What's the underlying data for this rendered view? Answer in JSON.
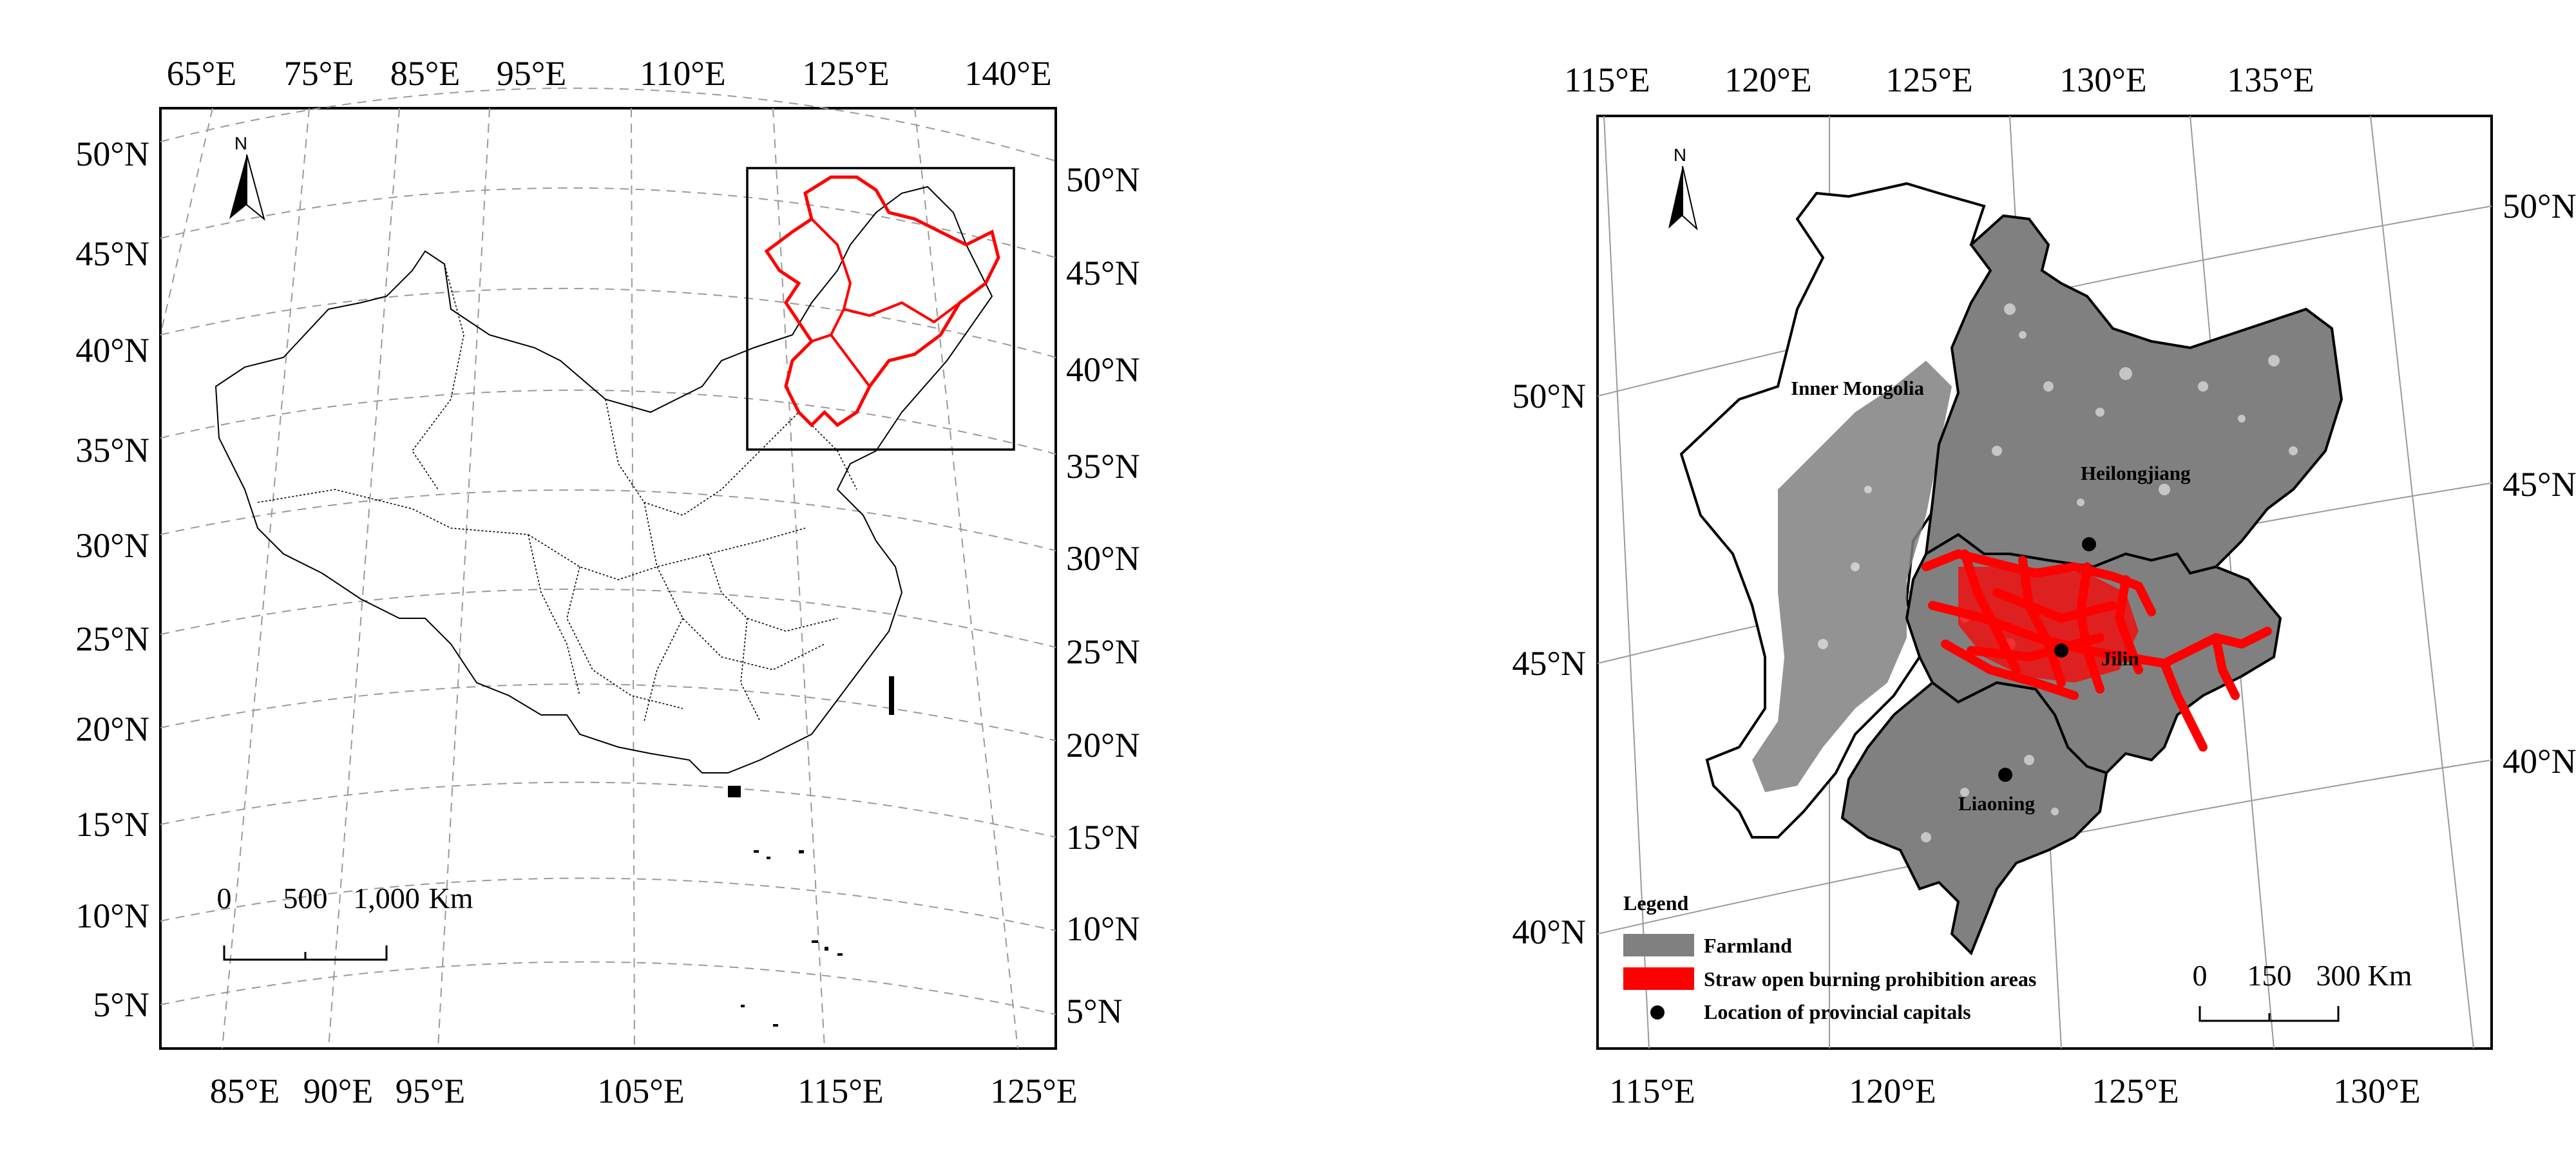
{
  "left_map": {
    "top_lon_labels": [
      "65°E",
      "75°E",
      "85°E",
      "95°E",
      "110°E",
      "125°E",
      "140°E"
    ],
    "bottom_lon_labels": [
      "85°E",
      "90°E",
      "95°E",
      "105°E",
      "115°E",
      "125°E"
    ],
    "left_lat_labels": [
      "50°N",
      "45°N",
      "40°N",
      "35°N",
      "30°N",
      "25°N",
      "20°N",
      "15°N",
      "10°N",
      "5°N"
    ],
    "right_lat_labels": [
      "50°N",
      "45°N",
      "40°N",
      "35°N",
      "30°N",
      "25°N",
      "20°N",
      "15°N",
      "10°N",
      "5°N"
    ],
    "north_arrow": "N",
    "scale_bar": {
      "ticks": [
        "0",
        "500",
        "1,000"
      ],
      "unit": "Km"
    }
  },
  "right_map": {
    "top_lon_labels": [
      "115°E",
      "120°E",
      "125°E",
      "130°E",
      "135°E"
    ],
    "bottom_lon_labels": [
      "115°E",
      "120°E",
      "125°E",
      "130°E"
    ],
    "left_lat_labels": [
      "50°N",
      "45°N",
      "40°N"
    ],
    "right_lat_labels": [
      "50°N",
      "45°N",
      "40°N"
    ],
    "north_arrow": "N",
    "provinces": [
      "Inner Mongolia",
      "Heilongjiang",
      "Jilin",
      "Liaoning"
    ],
    "legend": {
      "title": "Legend",
      "items": [
        {
          "label": "Farmland",
          "color": "#808080",
          "symbol": "box"
        },
        {
          "label": "Straw open burning prohibition areas",
          "color": "#ff0000",
          "symbol": "box"
        },
        {
          "label": "Location of provincial capitals",
          "color": "#000000",
          "symbol": "dot"
        }
      ]
    },
    "scale_bar": {
      "ticks": [
        "0",
        "150",
        "300"
      ],
      "unit": "Km"
    }
  },
  "colors": {
    "farmland": "#808080",
    "prohibition": "#ff0000",
    "border": "#000000",
    "graticule": "#9a9a9a"
  }
}
